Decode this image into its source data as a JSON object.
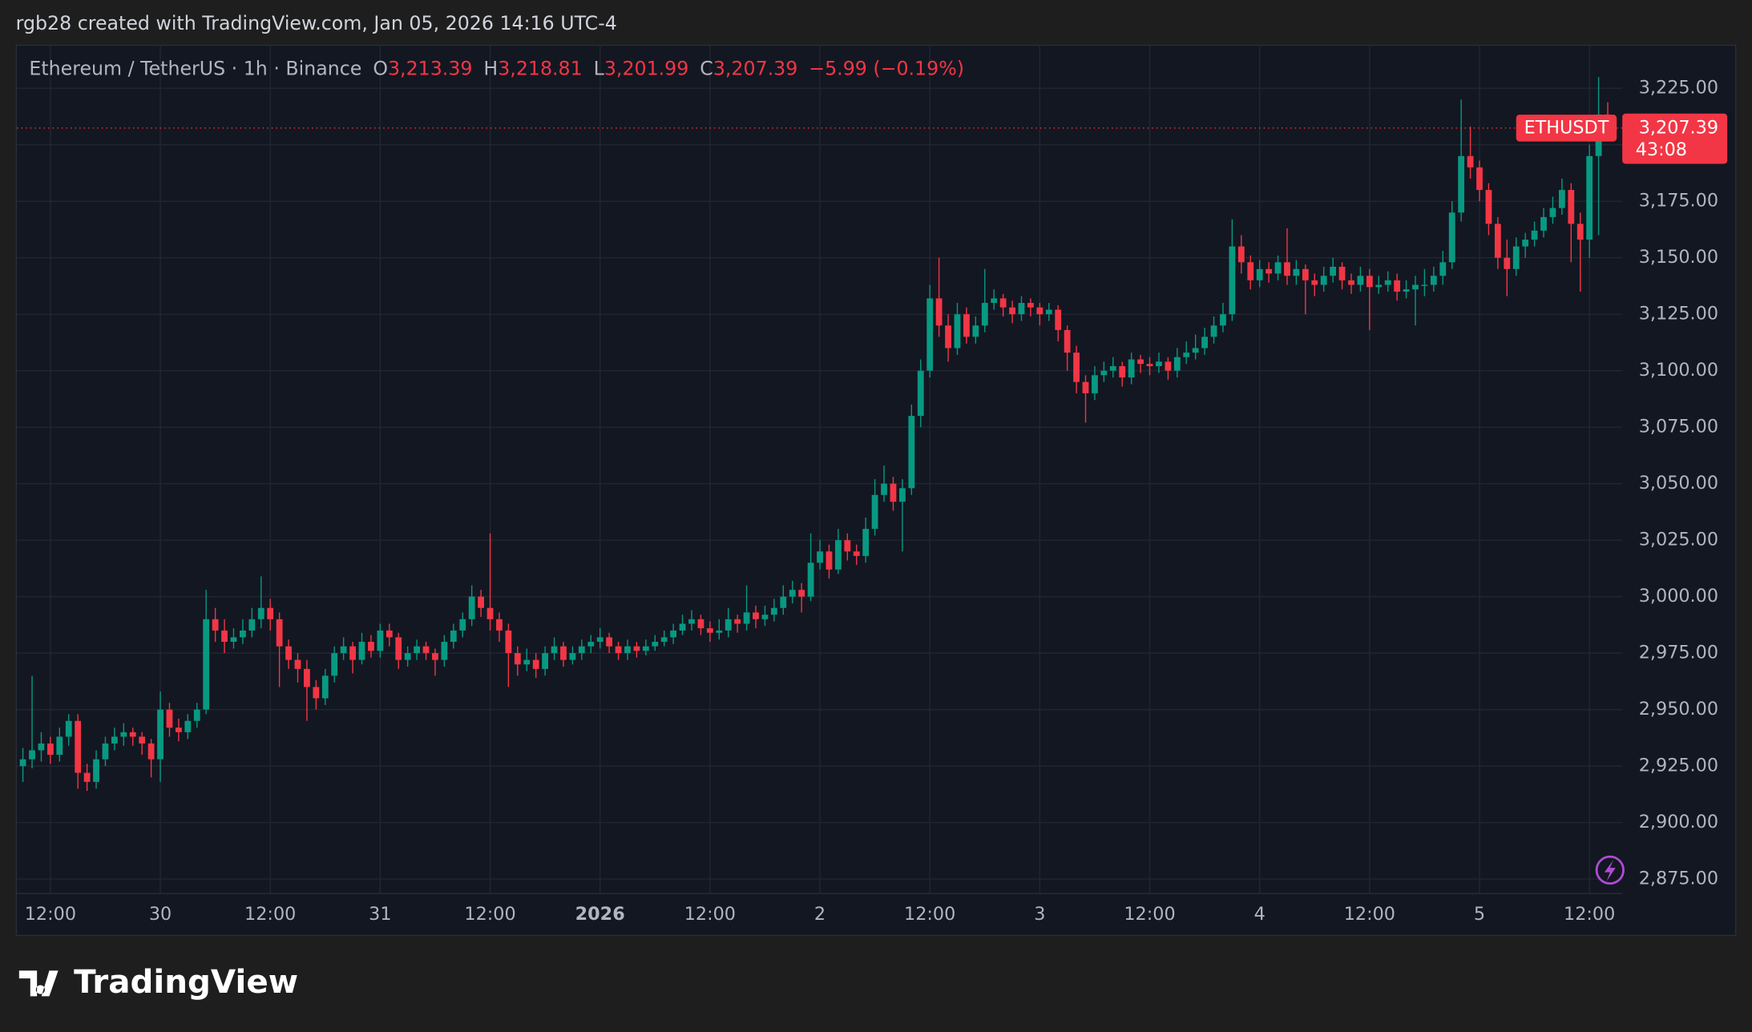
{
  "chart_data": {
    "type": "candlestick",
    "caption": "rgb28 created with TradingView.com, Jan 05, 2026 14:16 UTC-4",
    "legend": {
      "title": "Ethereum / TetherUS · 1h · Binance",
      "items": [
        {
          "key": "O",
          "value": "3,213.39"
        },
        {
          "key": "H",
          "value": "3,218.81"
        },
        {
          "key": "L",
          "value": "3,201.99"
        },
        {
          "key": "C",
          "value": "3,207.39"
        }
      ],
      "change": "−5.99 (−0.19%)"
    },
    "symbol": "ETHUSDT",
    "last_price": {
      "value": 3207.39,
      "label": "3,207.39"
    },
    "countdown": "43:08",
    "footer": "TradingView",
    "up_color": "#089981",
    "down_color": "#f23645",
    "grid": true,
    "ylim": [
      2868.6,
      3244.3
    ],
    "yticks": [
      {
        "value": 2875,
        "label": "2,875.00"
      },
      {
        "value": 2900,
        "label": "2,900.00"
      },
      {
        "value": 2925,
        "label": "2,925.00"
      },
      {
        "value": 2950,
        "label": "2,950.00"
      },
      {
        "value": 2975,
        "label": "2,975.00"
      },
      {
        "value": 3000,
        "label": "3,000.00"
      },
      {
        "value": 3025,
        "label": "3,025.00"
      },
      {
        "value": 3050,
        "label": "3,050.00"
      },
      {
        "value": 3075,
        "label": "3,075.00"
      },
      {
        "value": 3100,
        "label": "3,100.00"
      },
      {
        "value": 3125,
        "label": "3,125.00"
      },
      {
        "value": 3150,
        "label": "3,150.00"
      },
      {
        "value": 3175,
        "label": "3,175.00"
      },
      {
        "value": 3200,
        "label": "3,200.00"
      },
      {
        "value": 3225,
        "label": "3,225.00"
      }
    ],
    "xticks": [
      {
        "value": 3,
        "label": "12:00"
      },
      {
        "value": 15,
        "label": "30"
      },
      {
        "value": 27,
        "label": "12:00"
      },
      {
        "value": 39,
        "label": "31"
      },
      {
        "value": 51,
        "label": "12:00"
      },
      {
        "value": 63,
        "label": "2026"
      },
      {
        "value": 75,
        "label": "12:00"
      },
      {
        "value": 87,
        "label": "2"
      },
      {
        "value": 99,
        "label": "12:00"
      },
      {
        "value": 111,
        "label": "3"
      },
      {
        "value": 123,
        "label": "12:00"
      },
      {
        "value": 135,
        "label": "4"
      },
      {
        "value": 147,
        "label": "12:00"
      },
      {
        "value": 159,
        "label": "5"
      },
      {
        "value": 171,
        "label": "12:00"
      }
    ],
    "ohlc": [
      [
        2925,
        2933,
        2918,
        2928
      ],
      [
        2928,
        2965,
        2924,
        2932
      ],
      [
        2932,
        2940,
        2927,
        2935
      ],
      [
        2935,
        2938,
        2926,
        2930
      ],
      [
        2930,
        2942,
        2927,
        2938
      ],
      [
        2938,
        2948,
        2934,
        2945
      ],
      [
        2945,
        2948,
        2915,
        2922
      ],
      [
        2922,
        2926,
        2914,
        2918
      ],
      [
        2918,
        2932,
        2915,
        2928
      ],
      [
        2928,
        2938,
        2925,
        2935
      ],
      [
        2935,
        2942,
        2932,
        2938
      ],
      [
        2938,
        2944,
        2934,
        2940
      ],
      [
        2940,
        2942,
        2934,
        2938
      ],
      [
        2938,
        2940,
        2930,
        2935
      ],
      [
        2935,
        2937,
        2920,
        2928
      ],
      [
        2928,
        2958,
        2918,
        2950
      ],
      [
        2950,
        2953,
        2938,
        2942
      ],
      [
        2942,
        2946,
        2936,
        2940
      ],
      [
        2940,
        2948,
        2937,
        2945
      ],
      [
        2945,
        2953,
        2942,
        2950
      ],
      [
        2950,
        3003,
        2948,
        2990
      ],
      [
        2990,
        2995,
        2980,
        2985
      ],
      [
        2985,
        2990,
        2975,
        2980
      ],
      [
        2980,
        2986,
        2977,
        2982
      ],
      [
        2982,
        2990,
        2979,
        2985
      ],
      [
        2985,
        2995,
        2982,
        2990
      ],
      [
        2990,
        3009,
        2986,
        2995
      ],
      [
        2995,
        2999,
        2985,
        2990
      ],
      [
        2990,
        2993,
        2960,
        2978
      ],
      [
        2978,
        2981,
        2968,
        2972
      ],
      [
        2972,
        2975,
        2962,
        2968
      ],
      [
        2968,
        2972,
        2945,
        2960
      ],
      [
        2960,
        2963,
        2950,
        2955
      ],
      [
        2955,
        2968,
        2952,
        2965
      ],
      [
        2965,
        2978,
        2962,
        2975
      ],
      [
        2975,
        2982,
        2972,
        2978
      ],
      [
        2978,
        2980,
        2966,
        2972
      ],
      [
        2972,
        2984,
        2970,
        2980
      ],
      [
        2980,
        2983,
        2973,
        2976
      ],
      [
        2976,
        2988,
        2973,
        2985
      ],
      [
        2985,
        2988,
        2978,
        2982
      ],
      [
        2982,
        2984,
        2968,
        2972
      ],
      [
        2972,
        2978,
        2969,
        2975
      ],
      [
        2975,
        2981,
        2972,
        2978
      ],
      [
        2978,
        2980,
        2972,
        2975
      ],
      [
        2975,
        2977,
        2965,
        2972
      ],
      [
        2972,
        2983,
        2969,
        2980
      ],
      [
        2980,
        2988,
        2977,
        2985
      ],
      [
        2985,
        2993,
        2982,
        2990
      ],
      [
        2990,
        3005,
        2987,
        3000
      ],
      [
        3000,
        3003,
        2991,
        2995
      ],
      [
        2995,
        3028,
        2985,
        2990
      ],
      [
        2990,
        2993,
        2980,
        2985
      ],
      [
        2985,
        2988,
        2960,
        2975
      ],
      [
        2975,
        2978,
        2965,
        2970
      ],
      [
        2970,
        2977,
        2967,
        2972
      ],
      [
        2972,
        2975,
        2964,
        2968
      ],
      [
        2968,
        2978,
        2965,
        2975
      ],
      [
        2975,
        2982,
        2972,
        2978
      ],
      [
        2978,
        2980,
        2969,
        2972
      ],
      [
        2972,
        2978,
        2970,
        2975
      ],
      [
        2975,
        2981,
        2972,
        2978
      ],
      [
        2978,
        2983,
        2975,
        2980
      ],
      [
        2980,
        2986,
        2977,
        2982
      ],
      [
        2982,
        2984,
        2975,
        2978
      ],
      [
        2978,
        2980,
        2972,
        2975
      ],
      [
        2975,
        2981,
        2972,
        2978
      ],
      [
        2978,
        2980,
        2973,
        2976
      ],
      [
        2976,
        2981,
        2974,
        2978
      ],
      [
        2978,
        2983,
        2976,
        2980
      ],
      [
        2980,
        2985,
        2978,
        2982
      ],
      [
        2982,
        2988,
        2979,
        2985
      ],
      [
        2985,
        2992,
        2983,
        2988
      ],
      [
        2988,
        2994,
        2985,
        2990
      ],
      [
        2990,
        2992,
        2983,
        2986
      ],
      [
        2986,
        2989,
        2980,
        2984
      ],
      [
        2984,
        2990,
        2981,
        2985
      ],
      [
        2985,
        2995,
        2982,
        2990
      ],
      [
        2990,
        2992,
        2984,
        2988
      ],
      [
        2988,
        3005,
        2985,
        2993
      ],
      [
        2993,
        2996,
        2986,
        2990
      ],
      [
        2990,
        2996,
        2987,
        2992
      ],
      [
        2992,
        2999,
        2989,
        2995
      ],
      [
        2995,
        3005,
        2992,
        3000
      ],
      [
        3000,
        3007,
        2997,
        3003
      ],
      [
        3003,
        3006,
        2993,
        3000
      ],
      [
        3000,
        3028,
        2998,
        3015
      ],
      [
        3015,
        3025,
        3012,
        3020
      ],
      [
        3020,
        3023,
        3008,
        3012
      ],
      [
        3012,
        3030,
        3010,
        3025
      ],
      [
        3025,
        3028,
        3016,
        3020
      ],
      [
        3020,
        3023,
        3014,
        3018
      ],
      [
        3018,
        3035,
        3015,
        3030
      ],
      [
        3030,
        3052,
        3027,
        3045
      ],
      [
        3045,
        3058,
        3042,
        3050
      ],
      [
        3050,
        3053,
        3038,
        3042
      ],
      [
        3042,
        3052,
        3020,
        3048
      ],
      [
        3048,
        3085,
        3045,
        3080
      ],
      [
        3080,
        3105,
        3075,
        3100
      ],
      [
        3100,
        3138,
        3097,
        3132
      ],
      [
        3132,
        3150,
        3115,
        3120
      ],
      [
        3120,
        3125,
        3104,
        3110
      ],
      [
        3110,
        3130,
        3107,
        3125
      ],
      [
        3125,
        3128,
        3112,
        3115
      ],
      [
        3115,
        3124,
        3112,
        3120
      ],
      [
        3120,
        3145,
        3117,
        3130
      ],
      [
        3130,
        3136,
        3127,
        3132
      ],
      [
        3132,
        3134,
        3124,
        3128
      ],
      [
        3128,
        3131,
        3121,
        3125
      ],
      [
        3125,
        3133,
        3122,
        3130
      ],
      [
        3130,
        3132,
        3124,
        3128
      ],
      [
        3128,
        3130,
        3120,
        3125
      ],
      [
        3125,
        3130,
        3122,
        3127
      ],
      [
        3127,
        3129,
        3113,
        3118
      ],
      [
        3118,
        3120,
        3100,
        3108
      ],
      [
        3108,
        3111,
        3090,
        3095
      ],
      [
        3095,
        3098,
        3077,
        3090
      ],
      [
        3090,
        3102,
        3087,
        3098
      ],
      [
        3098,
        3104,
        3095,
        3100
      ],
      [
        3100,
        3106,
        3097,
        3102
      ],
      [
        3102,
        3104,
        3093,
        3097
      ],
      [
        3097,
        3108,
        3094,
        3105
      ],
      [
        3105,
        3107,
        3099,
        3103
      ],
      [
        3103,
        3106,
        3098,
        3102
      ],
      [
        3102,
        3108,
        3099,
        3104
      ],
      [
        3104,
        3106,
        3096,
        3100
      ],
      [
        3100,
        3110,
        3097,
        3106
      ],
      [
        3106,
        3113,
        3103,
        3108
      ],
      [
        3108,
        3116,
        3105,
        3110
      ],
      [
        3110,
        3119,
        3107,
        3115
      ],
      [
        3115,
        3124,
        3112,
        3120
      ],
      [
        3120,
        3130,
        3117,
        3125
      ],
      [
        3125,
        3167,
        3122,
        3155
      ],
      [
        3155,
        3160,
        3143,
        3148
      ],
      [
        3148,
        3151,
        3136,
        3140
      ],
      [
        3140,
        3149,
        3137,
        3145
      ],
      [
        3145,
        3148,
        3139,
        3143
      ],
      [
        3143,
        3151,
        3140,
        3148
      ],
      [
        3148,
        3163,
        3138,
        3142
      ],
      [
        3142,
        3149,
        3138,
        3145
      ],
      [
        3145,
        3147,
        3125,
        3140
      ],
      [
        3140,
        3143,
        3133,
        3138
      ],
      [
        3138,
        3146,
        3135,
        3142
      ],
      [
        3142,
        3150,
        3139,
        3146
      ],
      [
        3146,
        3148,
        3136,
        3140
      ],
      [
        3140,
        3143,
        3134,
        3138
      ],
      [
        3138,
        3146,
        3135,
        3142
      ],
      [
        3142,
        3145,
        3118,
        3137
      ],
      [
        3137,
        3142,
        3134,
        3138
      ],
      [
        3138,
        3144,
        3135,
        3140
      ],
      [
        3140,
        3143,
        3131,
        3135
      ],
      [
        3135,
        3140,
        3132,
        3136
      ],
      [
        3136,
        3142,
        3120,
        3138
      ],
      [
        3138,
        3145,
        3133,
        3138
      ],
      [
        3138,
        3146,
        3135,
        3142
      ],
      [
        3142,
        3153,
        3138,
        3148
      ],
      [
        3148,
        3175,
        3145,
        3170
      ],
      [
        3170,
        3220,
        3166,
        3195
      ],
      [
        3195,
        3208,
        3185,
        3190
      ],
      [
        3190,
        3193,
        3175,
        3180
      ],
      [
        3180,
        3183,
        3160,
        3165
      ],
      [
        3165,
        3168,
        3145,
        3150
      ],
      [
        3150,
        3158,
        3133,
        3145
      ],
      [
        3145,
        3159,
        3142,
        3155
      ],
      [
        3155,
        3161,
        3150,
        3158
      ],
      [
        3158,
        3166,
        3155,
        3162
      ],
      [
        3162,
        3172,
        3159,
        3168
      ],
      [
        3168,
        3177,
        3165,
        3172
      ],
      [
        3172,
        3185,
        3169,
        3180
      ],
      [
        3180,
        3183,
        3148,
        3165
      ],
      [
        3165,
        3170,
        3135,
        3158
      ],
      [
        3158,
        3200,
        3150,
        3195
      ],
      [
        3195,
        3230,
        3160,
        3213.39
      ],
      [
        3213.39,
        3218.81,
        3201.99,
        3207.39
      ]
    ]
  }
}
